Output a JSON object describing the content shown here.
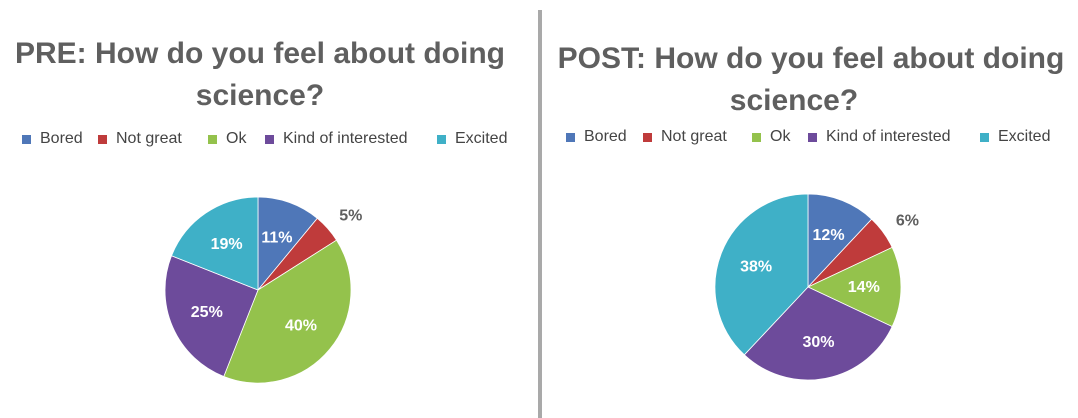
{
  "colors": {
    "Bored": "#4f77b8",
    "Not great": "#bf3b3b",
    "Ok": "#94c24c",
    "Kind of interested": "#6d4b9b",
    "Excited": "#3fb0c7",
    "title": "#5f5f5f",
    "outside_label": "#5f5f5f",
    "inside_label": "#ffffff"
  },
  "chart_data": [
    {
      "type": "pie",
      "title_line1": "PRE: How do you feel about doing",
      "title_line2": "science?",
      "legend_position": "top",
      "legend": [
        "Bored",
        "Not great",
        "Ok",
        "Kind of interested",
        "Excited"
      ],
      "categories": [
        "Bored",
        "Not great",
        "Ok",
        "Kind of interested",
        "Excited"
      ],
      "values": [
        11,
        5,
        40,
        25,
        19
      ],
      "labels": [
        "11%",
        "5%",
        "40%",
        "25%",
        "19%"
      ]
    },
    {
      "type": "pie",
      "title_line1": "POST: How do you feel about doing",
      "title_line2": "science?",
      "legend_position": "top",
      "legend": [
        "Bored",
        "Not great",
        "Ok",
        "Kind of interested",
        "Excited"
      ],
      "categories": [
        "Bored",
        "Not great",
        "Ok",
        "Kind of interested",
        "Excited"
      ],
      "values": [
        12,
        6,
        14,
        30,
        38
      ],
      "labels": [
        "12%",
        "6%",
        "14%",
        "30%",
        "38%"
      ]
    }
  ]
}
